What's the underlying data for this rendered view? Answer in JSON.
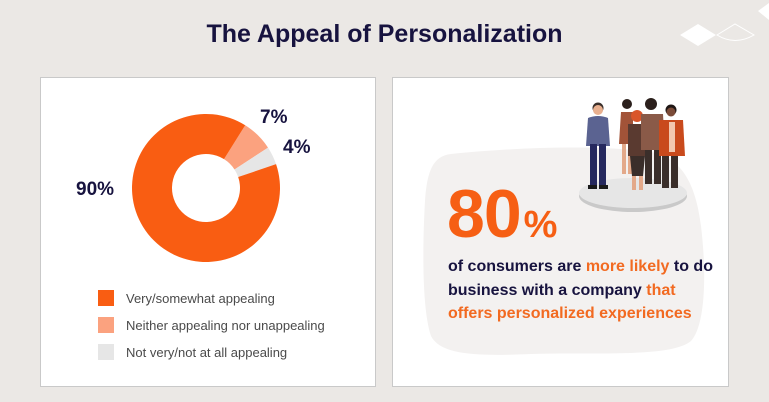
{
  "title": "The Appeal of Personalization",
  "colors": {
    "background": "#ebe8e5",
    "navy": "#17133f",
    "orange": "#f95d12",
    "light_orange": "#fba27f",
    "grey": "#e6e6e6",
    "highlight": "#f26a21"
  },
  "left_card": {
    "labels": {
      "very": "90%",
      "neither": "7%",
      "not": "4%"
    },
    "legend": [
      {
        "label": "Very/somewhat appealing",
        "color": "#f95d12"
      },
      {
        "label": "Neither appealing nor unappealing",
        "color": "#fba27f"
      },
      {
        "label": "Not very/not at all appealing",
        "color": "#e6e6e6"
      }
    ]
  },
  "right_card": {
    "big_number": "80",
    "big_suffix": "%",
    "statement": {
      "part1": "of consumers are ",
      "hl1": "more likely",
      "part2": " to do business with a company ",
      "hl2": "that offers personalized experiences"
    },
    "illustration": "group-of-people-on-platform-icon"
  },
  "chart_data": {
    "type": "pie",
    "subtype": "donut",
    "title": "The Appeal of Personalization",
    "categories": [
      "Very/somewhat appealing",
      "Neither appealing nor unappealing",
      "Not very/not at all appealing"
    ],
    "values": [
      90,
      7,
      4
    ],
    "value_labels": [
      "90%",
      "7%",
      "4%"
    ],
    "colors": [
      "#f95d12",
      "#fba27f",
      "#e6e6e6"
    ],
    "legend_position": "bottom",
    "grid": false
  }
}
